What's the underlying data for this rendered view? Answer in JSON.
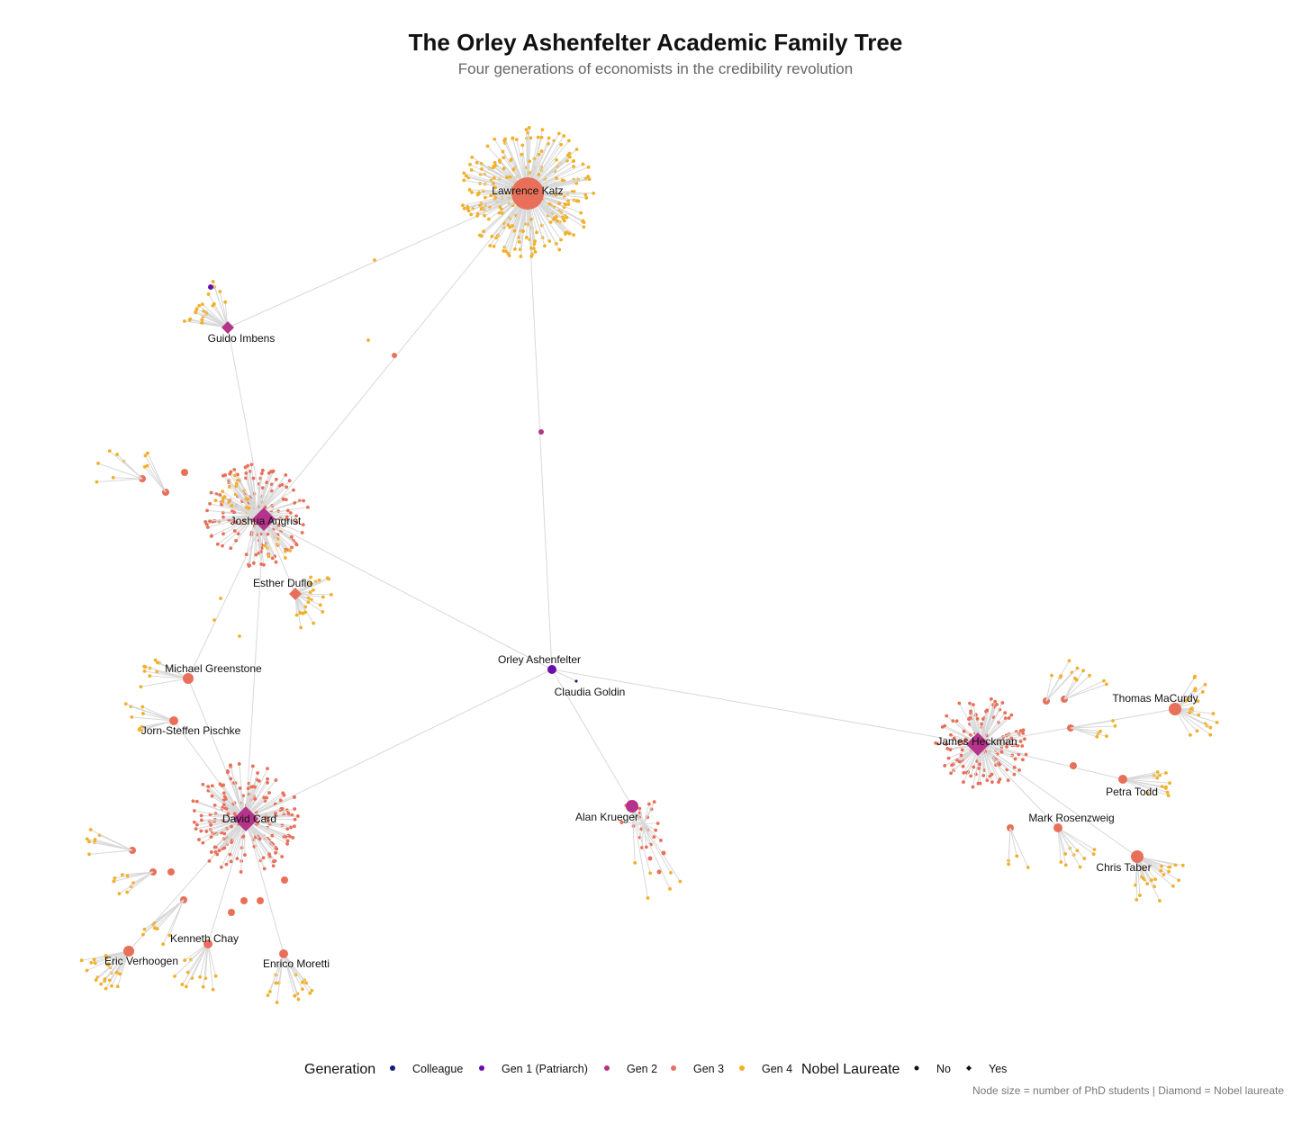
{
  "chart_data": {
    "type": "network",
    "title": "The Orley Ashenfelter Academic Family Tree",
    "subtitle": "Four generations of economists in the credibility revolution",
    "caption": "Node size = number of PhD students | Diamond = Nobel laureate",
    "legend": {
      "generation_title": "Generation",
      "generation_items": [
        {
          "label": "Colleague",
          "color": "#1a1a7a"
        },
        {
          "label": "Gen 1 (Patriarch)",
          "color": "#6a0dad"
        },
        {
          "label": "Gen 2",
          "color": "#b5338a"
        },
        {
          "label": "Gen 3",
          "color": "#e8705a"
        },
        {
          "label": "Gen 4",
          "color": "#f2b02a"
        }
      ],
      "nobel_title": "Nobel Laureate",
      "nobel_items": [
        {
          "label": "No",
          "shape": "circle"
        },
        {
          "label": "Yes",
          "shape": "diamond"
        }
      ]
    },
    "nodes": [
      {
        "name": "Orley Ashenfelter",
        "generation": "Gen 1 (Patriarch)",
        "nobel": "No"
      },
      {
        "name": "Claudia Goldin",
        "generation": "Colleague",
        "nobel": "Yes"
      },
      {
        "name": "Lawrence Katz",
        "generation": "Gen 3",
        "nobel": "No"
      },
      {
        "name": "Guido Imbens",
        "generation": "Gen 2",
        "nobel": "Yes"
      },
      {
        "name": "Joshua Angrist",
        "generation": "Gen 2",
        "nobel": "Yes"
      },
      {
        "name": "Esther Duflo",
        "generation": "Gen 3",
        "nobel": "Yes"
      },
      {
        "name": "Michael Greenstone",
        "generation": "Gen 3",
        "nobel": "No"
      },
      {
        "name": "Jorn-Steffen Pischke",
        "generation": "Gen 3",
        "nobel": "No"
      },
      {
        "name": "David Card",
        "generation": "Gen 2",
        "nobel": "Yes"
      },
      {
        "name": "Kenneth Chay",
        "generation": "Gen 3",
        "nobel": "No"
      },
      {
        "name": "Eric Verhoogen",
        "generation": "Gen 3",
        "nobel": "No"
      },
      {
        "name": "Enrico Moretti",
        "generation": "Gen 3",
        "nobel": "No"
      },
      {
        "name": "Alan Krueger",
        "generation": "Gen 2",
        "nobel": "No"
      },
      {
        "name": "James Heckman",
        "generation": "Gen 2",
        "nobel": "Yes"
      },
      {
        "name": "Thomas MaCurdy",
        "generation": "Gen 3",
        "nobel": "No"
      },
      {
        "name": "Petra Todd",
        "generation": "Gen 3",
        "nobel": "No"
      },
      {
        "name": "Mark Rosenzweig",
        "generation": "Gen 3",
        "nobel": "No"
      },
      {
        "name": "Chris Taber",
        "generation": "Gen 3",
        "nobel": "No"
      }
    ],
    "edges": [
      [
        "Orley Ashenfelter",
        "Joshua Angrist"
      ],
      [
        "Orley Ashenfelter",
        "David Card"
      ],
      [
        "Orley Ashenfelter",
        "Alan Krueger"
      ],
      [
        "Orley Ashenfelter",
        "James Heckman"
      ],
      [
        "Orley Ashenfelter",
        "Claudia Goldin"
      ],
      [
        "Orley Ashenfelter",
        "Lawrence Katz"
      ],
      [
        "Joshua Angrist",
        "Guido Imbens"
      ],
      [
        "Joshua Angrist",
        "Esther Duflo"
      ],
      [
        "Joshua Angrist",
        "Michael Greenstone"
      ],
      [
        "Joshua Angrist",
        "Lawrence Katz"
      ],
      [
        "Guido Imbens",
        "Lawrence Katz"
      ],
      [
        "David Card",
        "Joshua Angrist"
      ],
      [
        "David Card",
        "Michael Greenstone"
      ],
      [
        "David Card",
        "Jorn-Steffen Pischke"
      ],
      [
        "David Card",
        "Kenneth Chay"
      ],
      [
        "David Card",
        "Eric Verhoogen"
      ],
      [
        "David Card",
        "Enrico Moretti"
      ],
      [
        "James Heckman",
        "Thomas MaCurdy"
      ],
      [
        "James Heckman",
        "Petra Todd"
      ],
      [
        "James Heckman",
        "Mark Rosenzweig"
      ],
      [
        "James Heckman",
        "Chris Taber"
      ]
    ]
  }
}
